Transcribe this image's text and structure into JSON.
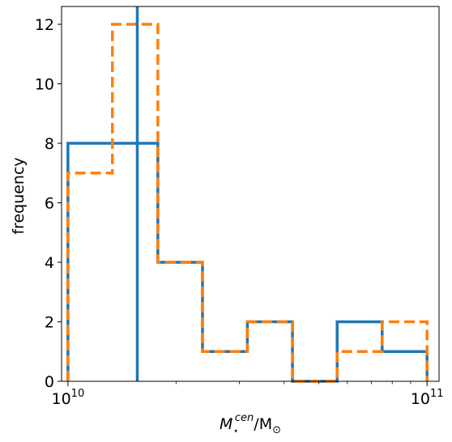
{
  "chart_data": {
    "type": "histogram",
    "title": "",
    "xlabel": "M",
    "xlabel_sup": "cen",
    "xlabel_sub": "⋆",
    "xlabel_unit": "/M",
    "xlabel_unit_sub": "⊙",
    "ylabel": "frequency",
    "xscale": "log",
    "xlim": [
      9600000000,
      108000000000
    ],
    "ylim": [
      0,
      12.6
    ],
    "yticks": [
      0,
      2,
      4,
      6,
      8,
      10,
      12
    ],
    "ytick_labels": [
      "0",
      "2",
      "4",
      "6",
      "8",
      "10",
      "12"
    ],
    "xticks": [
      10000000000,
      100000000000
    ],
    "xtick_labels": [
      "10",
      "10"
    ],
    "xtick_exponents": [
      "10",
      "11"
    ],
    "bin_edges": [
      10000000000,
      13300000000,
      17800000000,
      23700000000,
      31600000000,
      42200000000,
      56200000000,
      75000000000,
      100000000000
    ],
    "series": [
      {
        "color": "#1f77b4",
        "dash": "solid",
        "counts": [
          8,
          8,
          4,
          1,
          2,
          0,
          2,
          1
        ]
      },
      {
        "color": "#ff7f0e",
        "dash": "dashed",
        "counts": [
          7,
          12,
          4,
          1,
          2,
          0,
          1,
          2
        ]
      }
    ],
    "vline": {
      "x": 15600000000,
      "color": "#1f77b4"
    }
  }
}
